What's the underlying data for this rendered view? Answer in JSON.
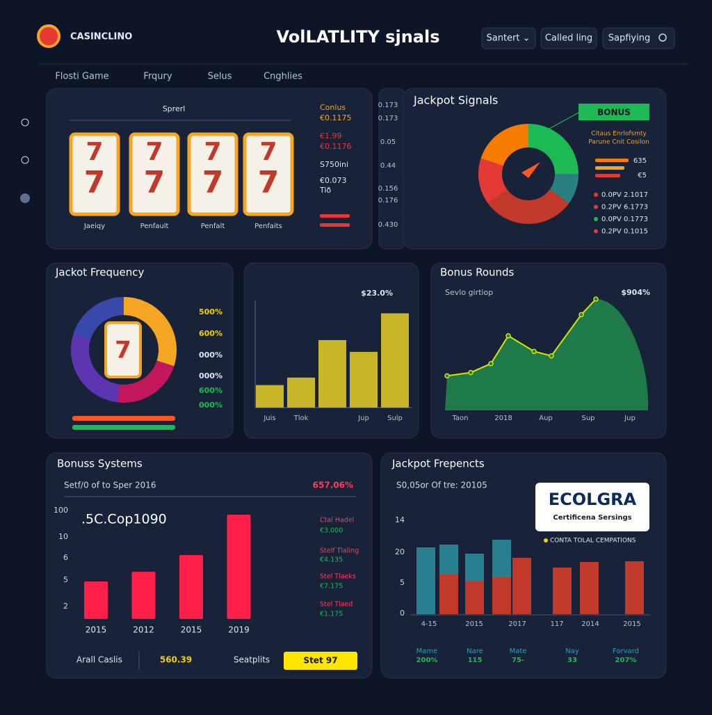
{
  "header": {
    "logo": "CASINCLINO",
    "title": "VolLATLITY sjnals",
    "buttons": [
      "Santert ⌄",
      "Called ling",
      "Sapfiying"
    ]
  },
  "tabs": [
    "Flosti Game",
    "Frqury",
    "Selus",
    "Cnghlies"
  ],
  "slot_panel": {
    "title": "Sprerl",
    "reel_symbol": "7",
    "reel_labels": [
      "Jaeiqy",
      "Penfault",
      "Penfalt",
      "Penfaits"
    ],
    "side_texts": [
      "Conlus",
      "€0.1175",
      "€1.99",
      "€0.1176",
      "S750ini",
      "€0.073",
      "Tið"
    ],
    "column_texts": [
      "0.173",
      "0.173",
      "0.05",
      "0.44",
      "0.156",
      "0.176",
      "0.430"
    ]
  },
  "jackpot_signals": {
    "title": "Jackpot Signals",
    "badge": "BONUS",
    "subtitle_lines": [
      "Citaus Enrlofsmty",
      "Parune Cnit Cosilon"
    ],
    "mini_values": [
      "635",
      "€5"
    ],
    "legend": [
      {
        "label": "0.0PV 2.1017",
        "color": "#e53935"
      },
      {
        "label": "0.2PV 6.1773",
        "color": "#e53935"
      },
      {
        "label": "0.0PV 0.1773",
        "color": "#1db954"
      },
      {
        "label": "0.2PV 0.1015",
        "color": "#e53935"
      }
    ],
    "donut": {
      "values": [
        25,
        10,
        30,
        15,
        20
      ],
      "colors": [
        "#1db954",
        "#2a7f7f",
        "#c0392b",
        "#e53935",
        "#f57c00"
      ]
    }
  },
  "jackpot_frequency": {
    "title": "Jackot Frequency",
    "labels": [
      "500%",
      "600%",
      "000%",
      "000%",
      "600%",
      "000%"
    ],
    "donut": {
      "values": [
        30,
        22,
        28,
        20
      ],
      "colors": [
        "#f5a623",
        "#c2185b",
        "#5e35b1",
        "#3949ab"
      ]
    }
  },
  "bar_panel": {
    "annotation": "$23.0%",
    "categories": [
      "Juis",
      "Tlok",
      null,
      "Jup",
      "Sulp"
    ],
    "values": [
      21,
      28,
      63,
      52,
      88
    ],
    "color": "#c8b52a",
    "ylim": [
      0,
      100
    ]
  },
  "bonus_rounds": {
    "title": "Bonus Rounds",
    "subtitle": "Sevlo girtiop",
    "annotation": "$904%",
    "x_labels": [
      "Taon",
      "2018",
      "Aup",
      "Sup",
      "Jup"
    ],
    "values": [
      31,
      34,
      42,
      67,
      53,
      49,
      86,
      100
    ],
    "ylim": [
      0,
      100
    ],
    "color": "#1f7a4a"
  },
  "bonus_systems": {
    "title": "Bonuss Systems",
    "subtitle": "Setf/0 of to Sper 2016",
    "annotation": "657.06%",
    "big_text": ".5C.Cop1090",
    "y_labels": [
      "100",
      "10",
      "6",
      "5",
      "2"
    ],
    "categories": [
      "2015",
      "2012",
      "2015",
      "2019"
    ],
    "values": [
      54,
      68,
      92,
      150
    ],
    "ylim": [
      0,
      160
    ],
    "color": "#ff1f4b",
    "side_texts": [
      "Ctal Hadel",
      "€3.000",
      "Stelf Tlaling",
      "€4.135",
      "Stel Tlaeks",
      "€7.175",
      "Stel Tlaed",
      "€1.175"
    ],
    "footer": [
      "Arall Caslis",
      "560.39",
      "Seatplits",
      "Stet 97"
    ]
  },
  "jackpot_frepencts": {
    "title": "Jackpot Frepencts",
    "subtitle": "S0,05or Of tre: 20105",
    "logo": "ECOLGRA",
    "logo_sub": "Certificena Sersings",
    "note": "CONTA TOLAL CEMPATIONS",
    "y_labels": [
      "14",
      "20",
      "5",
      "0"
    ],
    "x_labels": [
      "4-15",
      "2015",
      "2017",
      "117",
      "2014",
      "2015"
    ],
    "series": [
      {
        "name": null,
        "color": "#c0392b",
        "values": [
          0,
          57,
          47,
          53,
          81,
          67,
          75,
          76
        ]
      },
      {
        "name": null,
        "color": "#2a7f8f",
        "values": [
          96,
          43,
          40,
          54,
          0,
          0,
          0,
          0
        ]
      }
    ],
    "ylim": [
      0,
      110
    ],
    "stats": [
      {
        "name": "Mame",
        "value": "200%"
      },
      {
        "name": "Nare",
        "value": "115"
      },
      {
        "name": "Mate",
        "value": "75-"
      },
      {
        "name": "Nay",
        "value": "33"
      },
      {
        "name": "Forvard",
        "value": "207%"
      }
    ]
  }
}
